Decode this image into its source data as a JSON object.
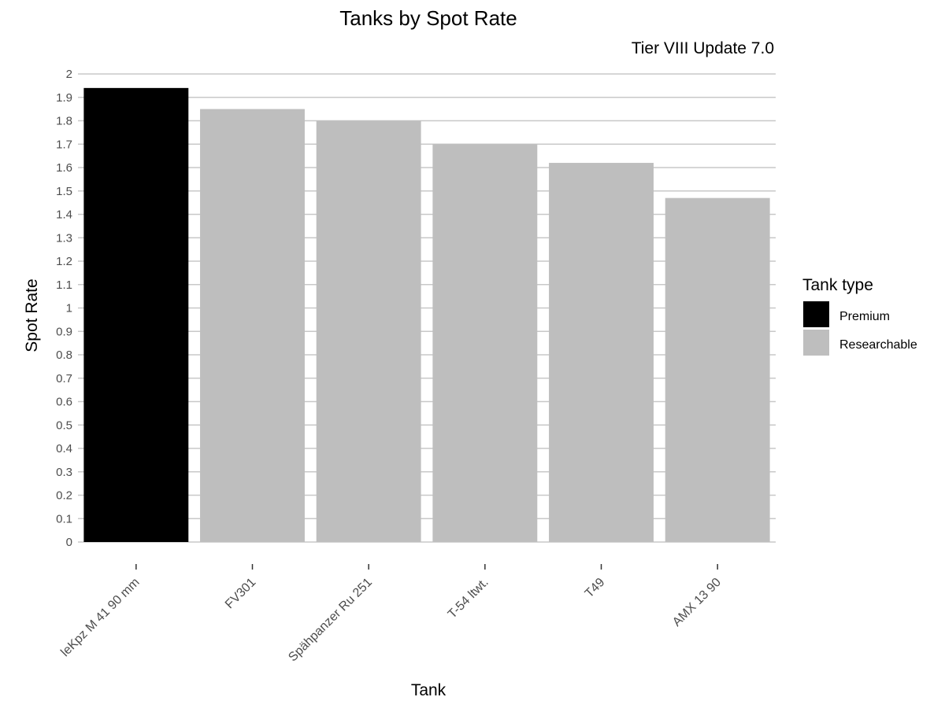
{
  "chart_data": {
    "type": "bar",
    "title": "Tanks by Spot Rate",
    "subtitle": "Tier VIII Update 7.0",
    "xlabel": "Tank",
    "ylabel": "Spot Rate",
    "ylim": [
      0,
      2
    ],
    "yticks": [
      "0",
      "0.1",
      "0.2",
      "0.3",
      "0.4",
      "0.5",
      "0.6",
      "0.7",
      "0.8",
      "0.9",
      "1",
      "1.1",
      "1.2",
      "1.3",
      "1.4",
      "1.5",
      "1.6",
      "1.7",
      "1.8",
      "1.9",
      "2"
    ],
    "grid": true,
    "categories": [
      "leKpz M 41 90 mm",
      "FV301",
      "Spähpanzer Ru 251",
      "T-54 ltwt.",
      "T49",
      "AMX 13 90"
    ],
    "values": [
      1.94,
      1.85,
      1.8,
      1.7,
      1.62,
      1.47
    ],
    "tank_type": [
      "Premium",
      "Researchable",
      "Researchable",
      "Researchable",
      "Researchable",
      "Researchable"
    ],
    "legend": {
      "title": "Tank type",
      "position": "right",
      "entries": [
        {
          "label": "Premium",
          "color": "#000000"
        },
        {
          "label": "Researchable",
          "color": "#bebebe"
        }
      ]
    }
  }
}
